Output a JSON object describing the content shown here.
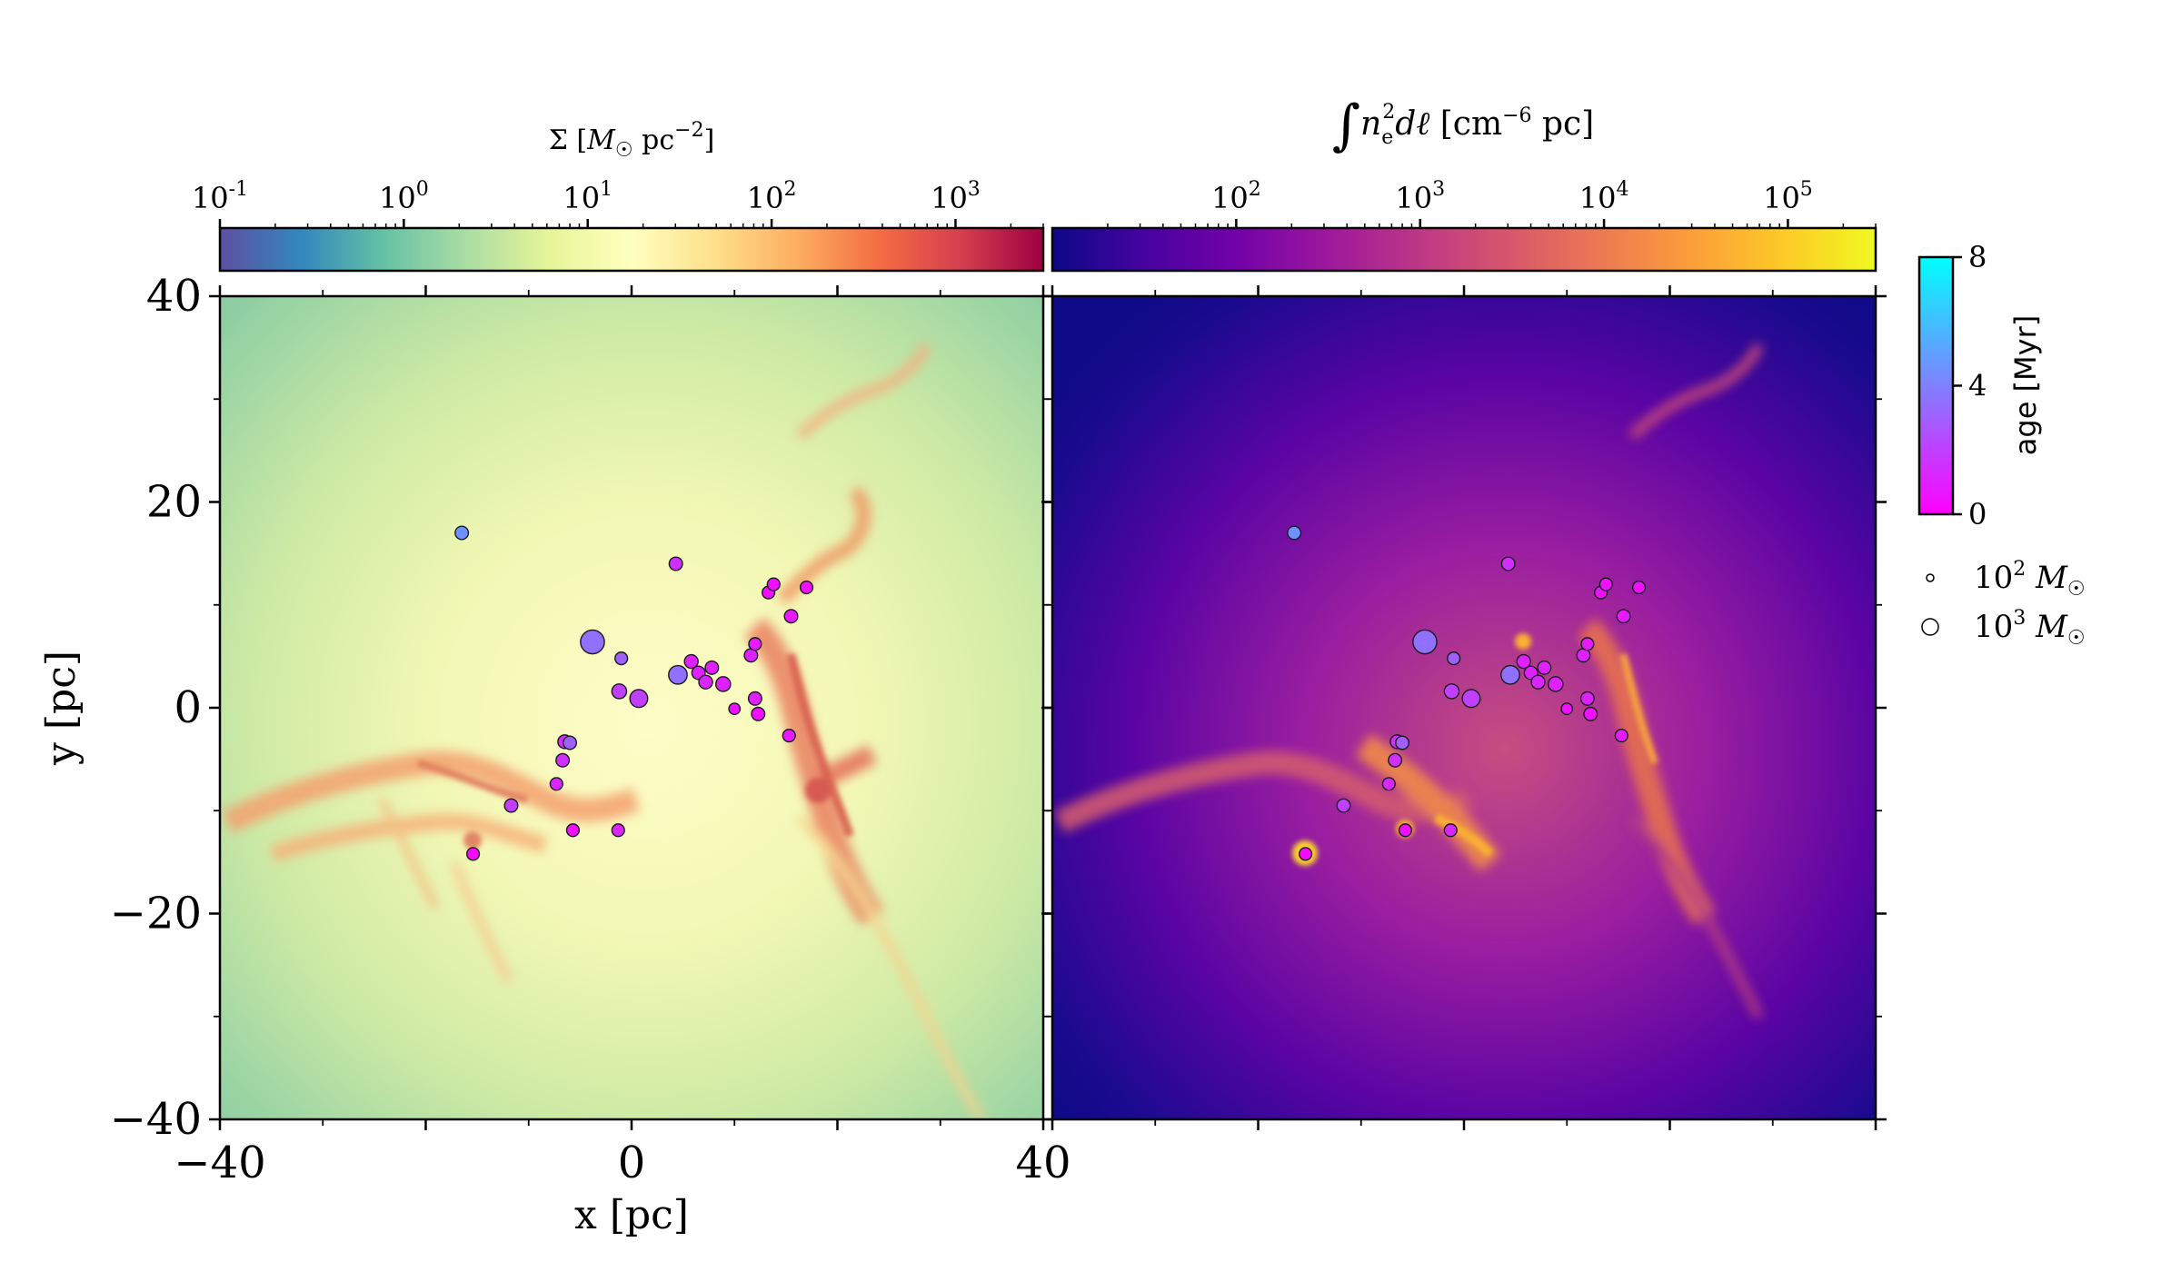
{
  "chart_data": {
    "type": "scatter",
    "xlabel": "x [pc]",
    "ylabel": "y [pc]",
    "xlim": [
      -40,
      40
    ],
    "ylim": [
      -40,
      40
    ],
    "x_ticks": [
      "−40",
      "0",
      "40"
    ],
    "y_ticks": [
      "40",
      "20",
      "0",
      "−20",
      "−40"
    ],
    "panels": [
      {
        "name": "surface-density",
        "background": "Spectral_r density map"
      },
      {
        "name": "emission-measure",
        "background": "plasma emission-measure map"
      }
    ],
    "colorbars": [
      {
        "label": "Σ [M☉ pc⁻²]",
        "scale": "log",
        "range": [
          0.1,
          3000
        ],
        "ticks": [
          "10-1",
          "100",
          "101",
          "102",
          "103"
        ],
        "tick_values": [
          0.1,
          1,
          10,
          100,
          1000
        ],
        "colors": [
          "#5e4fa2",
          "#3288bd",
          "#66c2a5",
          "#abdda4",
          "#e6f598",
          "#ffffbf",
          "#fee08b",
          "#fdae61",
          "#f46d43",
          "#d53e4f",
          "#9e0142"
        ]
      },
      {
        "label": "∫ne² dℓ [cm⁻⁶ pc]",
        "scale": "log",
        "range": [
          10,
          300000
        ],
        "ticks": [
          "102",
          "103",
          "104",
          "105"
        ],
        "tick_values": [
          100,
          1000,
          10000,
          100000
        ],
        "colors": [
          "#0d0887",
          "#46039f",
          "#7201a8",
          "#9c179e",
          "#bd3786",
          "#d8576b",
          "#ed7953",
          "#fb9f3a",
          "#fdca26",
          "#f0f921"
        ]
      },
      {
        "label": "age [Myr]",
        "range": [
          0,
          8
        ],
        "ticks": [
          "8",
          "4",
          "0"
        ],
        "tick_values": [
          8,
          4,
          0
        ],
        "colors": [
          "#ff00ff",
          "#8080ff",
          "#00ffff"
        ]
      }
    ],
    "size_legend": [
      {
        "label": "10² M☉",
        "mass": 100
      },
      {
        "label": "10³ M☉",
        "mass": 1000
      }
    ],
    "series": [
      {
        "points": [
          {
            "x": -16.5,
            "y": 17.0,
            "age": 4.5,
            "mass": 180
          },
          {
            "x": -3.8,
            "y": 6.4,
            "age": 3.5,
            "mass": 1000
          },
          {
            "x": -1.0,
            "y": 4.8,
            "age": 3.0,
            "mass": 150
          },
          {
            "x": -1.2,
            "y": 1.6,
            "age": 2.0,
            "mass": 250
          },
          {
            "x": 0.7,
            "y": 0.9,
            "age": 2.0,
            "mass": 450
          },
          {
            "x": 4.5,
            "y": 3.2,
            "age": 3.5,
            "mass": 500
          },
          {
            "x": 4.3,
            "y": 14.0,
            "age": 1.5,
            "mass": 180
          },
          {
            "x": 5.8,
            "y": 4.5,
            "age": 1.0,
            "mass": 200
          },
          {
            "x": 6.5,
            "y": 3.4,
            "age": 1.0,
            "mass": 180
          },
          {
            "x": 7.2,
            "y": 2.5,
            "age": 1.2,
            "mass": 200
          },
          {
            "x": 7.8,
            "y": 3.9,
            "age": 1.0,
            "mass": 180
          },
          {
            "x": 8.9,
            "y": 2.3,
            "age": 1.0,
            "mass": 250
          },
          {
            "x": 10.0,
            "y": -0.1,
            "age": 0.5,
            "mass": 100
          },
          {
            "x": 11.6,
            "y": 5.1,
            "age": 1.0,
            "mass": 180
          },
          {
            "x": 12.0,
            "y": 6.2,
            "age": 0.8,
            "mass": 150
          },
          {
            "x": 12.0,
            "y": 0.9,
            "age": 1.0,
            "mass": 180
          },
          {
            "x": 12.3,
            "y": -0.6,
            "age": 0.5,
            "mass": 180
          },
          {
            "x": 13.3,
            "y": 11.2,
            "age": 0.5,
            "mass": 150
          },
          {
            "x": 13.8,
            "y": 12.0,
            "age": 0.5,
            "mass": 150
          },
          {
            "x": 15.5,
            "y": 8.9,
            "age": 0.8,
            "mass": 180
          },
          {
            "x": 15.3,
            "y": -2.7,
            "age": 0.8,
            "mass": 150
          },
          {
            "x": 17.0,
            "y": 11.7,
            "age": 0.5,
            "mass": 150
          },
          {
            "x": -6.5,
            "y": -3.3,
            "age": 1.5,
            "mass": 200
          },
          {
            "x": -6.7,
            "y": -5.1,
            "age": 1.5,
            "mass": 180
          },
          {
            "x": -7.3,
            "y": -7.4,
            "age": 1.2,
            "mass": 150
          },
          {
            "x": -11.7,
            "y": -9.5,
            "age": 2.0,
            "mass": 180
          },
          {
            "x": -5.7,
            "y": -11.9,
            "age": 0.5,
            "mass": 150
          },
          {
            "x": -1.3,
            "y": -11.9,
            "age": 1.2,
            "mass": 150
          },
          {
            "x": -15.4,
            "y": -14.2,
            "age": 0.3,
            "mass": 150
          },
          {
            "x": -6.0,
            "y": -3.4,
            "age": 3.0,
            "mass": 180
          }
        ]
      }
    ]
  }
}
